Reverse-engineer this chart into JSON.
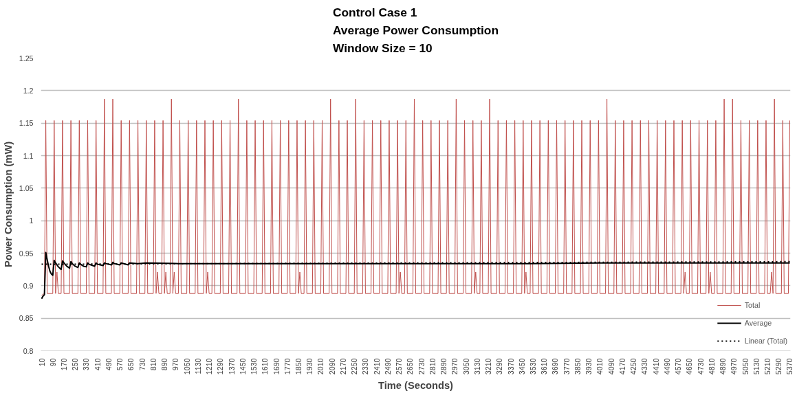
{
  "chart_data": {
    "type": "line",
    "title": "Control Case 1\nAverage Power Consumption\nWindow Size = 10",
    "xlabel": "Time (Seconds)",
    "ylabel": "Power Consumption (mW)",
    "xlim": [
      5,
      5375
    ],
    "xticks": [
      10,
      90,
      170,
      250,
      330,
      410,
      490,
      570,
      650,
      730,
      810,
      890,
      970,
      1050,
      1130,
      1210,
      1290,
      1370,
      1450,
      1530,
      1610,
      1690,
      1770,
      1850,
      1930,
      2010,
      2090,
      2170,
      2250,
      2330,
      2410,
      2490,
      2570,
      2650,
      2730,
      2810,
      2890,
      2970,
      3050,
      3130,
      3210,
      3290,
      3370,
      3450,
      3530,
      3610,
      3690,
      3770,
      3850,
      3930,
      4010,
      4090,
      4170,
      4250,
      4330,
      4410,
      4490,
      4570,
      4650,
      4730,
      4810,
      4890,
      4970,
      5050,
      5130,
      5210,
      5290,
      5370
    ],
    "ylim": [
      0.8,
      1.25
    ],
    "yticks": [
      0.8,
      0.85,
      0.9,
      0.95,
      1,
      1.05,
      1.1,
      1.15,
      1.2,
      1.25
    ],
    "grid": "y",
    "legend": "bottom right",
    "marker": "none",
    "series": [
      {
        "name": "Total",
        "color": "#c0504d",
        "line_style": "solid",
        "x": [
          10,
          20,
          30,
          40,
          50,
          90,
          100,
          110,
          120,
          130,
          150,
          160,
          170,
          210,
          220,
          230,
          270,
          280,
          290,
          330,
          340,
          350,
          390,
          400,
          410,
          450,
          460,
          470,
          510,
          520,
          530,
          570,
          580,
          590,
          630,
          640,
          650,
          690,
          700,
          710,
          750,
          760,
          770,
          810,
          820,
          830,
          840,
          850,
          870,
          880,
          890,
          900,
          910,
          930,
          940,
          950,
          960,
          970,
          990,
          1000,
          1010,
          1050,
          1060,
          1070,
          1110,
          1120,
          1130,
          1170,
          1180,
          1190,
          1200,
          1210,
          1230,
          1240,
          1250,
          1290,
          1300,
          1310,
          1350,
          1360,
          1370,
          1410,
          1420,
          1430,
          1470,
          1480,
          1490,
          1530,
          1540,
          1550,
          1590,
          1600,
          1610,
          1650,
          1660,
          1670,
          1710,
          1720,
          1730,
          1770,
          1780,
          1790,
          1830,
          1840,
          1850,
          1860,
          1870,
          1890,
          1900,
          1910,
          1950,
          1960,
          1970,
          2010,
          2020,
          2030,
          2070,
          2080,
          2090,
          2130,
          2140,
          2150,
          2190,
          2200,
          2210,
          2250,
          2260,
          2270,
          2310,
          2320,
          2330,
          2370,
          2380,
          2390,
          2430,
          2440,
          2450,
          2490,
          2500,
          2510,
          2550,
          2560,
          2570,
          2580,
          2590,
          2610,
          2620,
          2630,
          2670,
          2680,
          2690,
          2730,
          2740,
          2750,
          2790,
          2800,
          2810,
          2850,
          2860,
          2870,
          2910,
          2920,
          2930,
          2970,
          2980,
          2990,
          3030,
          3040,
          3050,
          3090,
          3100,
          3110,
          3120,
          3130,
          3150,
          3160,
          3170,
          3210,
          3220,
          3230,
          3270,
          3280,
          3290,
          3330,
          3340,
          3350,
          3390,
          3400,
          3410,
          3450,
          3460,
          3470,
          3480,
          3490,
          3510,
          3520,
          3530,
          3570,
          3580,
          3590,
          3630,
          3640,
          3650,
          3690,
          3700,
          3710,
          3750,
          3760,
          3770,
          3810,
          3820,
          3830,
          3870,
          3880,
          3890,
          3930,
          3940,
          3950,
          3990,
          4000,
          4010,
          4050,
          4060,
          4070,
          4110,
          4120,
          4130,
          4170,
          4180,
          4190,
          4230,
          4240,
          4250,
          4290,
          4300,
          4310,
          4350,
          4360,
          4370,
          4410,
          4420,
          4430,
          4470,
          4480,
          4490,
          4530,
          4540,
          4550,
          4590,
          4600,
          4610,
          4620,
          4630,
          4650,
          4660,
          4670,
          4710,
          4720,
          4730,
          4770,
          4780,
          4790,
          4800,
          4810,
          4830,
          4840,
          4850,
          4890,
          4900,
          4910,
          4950,
          4960,
          4970,
          5010,
          5020,
          5030,
          5070,
          5080,
          5090,
          5130,
          5140,
          5150,
          5190,
          5200,
          5210,
          5230,
          5240,
          5250,
          5260,
          5270,
          5310,
          5320,
          5330,
          5360,
          5370
        ],
        "values": [
          0.885,
          0.887,
          0.887,
          1.154,
          0.888,
          0.888,
          1.154,
          0.888,
          0.921,
          0.888,
          0.888,
          1.154,
          0.888,
          0.888,
          1.154,
          0.888,
          0.888,
          1.154,
          0.888,
          0.888,
          1.154,
          0.888,
          0.888,
          1.154,
          0.888,
          0.888,
          1.187,
          0.888,
          0.888,
          1.187,
          0.888,
          0.888,
          1.154,
          0.888,
          0.888,
          1.154,
          0.888,
          0.888,
          1.154,
          0.888,
          0.888,
          1.154,
          0.888,
          0.888,
          1.154,
          0.888,
          0.921,
          0.888,
          0.888,
          1.154,
          0.888,
          0.921,
          0.888,
          0.888,
          1.187,
          0.888,
          0.921,
          0.888,
          0.888,
          1.154,
          0.888,
          0.888,
          1.154,
          0.888,
          0.888,
          1.154,
          0.888,
          0.888,
          1.154,
          0.888,
          0.921,
          0.888,
          0.888,
          1.154,
          0.888,
          0.888,
          1.154,
          0.888,
          0.888,
          1.154,
          0.888,
          0.888,
          1.187,
          0.888,
          0.888,
          1.154,
          0.888,
          0.888,
          1.154,
          0.888,
          0.888,
          1.154,
          0.888,
          0.888,
          1.154,
          0.888,
          0.888,
          1.154,
          0.888,
          0.888,
          1.154,
          0.888,
          0.888,
          1.154,
          0.888,
          0.921,
          0.888,
          0.888,
          1.154,
          0.888,
          0.888,
          1.154,
          0.888,
          0.888,
          1.154,
          0.888,
          0.888,
          1.187,
          0.888,
          0.888,
          1.154,
          0.888,
          0.888,
          1.154,
          0.888,
          0.888,
          1.187,
          0.888,
          0.888,
          1.154,
          0.888,
          0.888,
          1.154,
          0.888,
          0.888,
          1.154,
          0.888,
          0.888,
          1.154,
          0.888,
          0.888,
          1.154,
          0.888,
          0.921,
          0.888,
          0.888,
          1.154,
          0.888,
          0.888,
          1.187,
          0.888,
          0.888,
          1.154,
          0.888,
          0.888,
          1.154,
          0.888,
          0.888,
          1.154,
          0.888,
          0.888,
          1.154,
          0.888,
          0.888,
          1.187,
          0.888,
          0.888,
          1.154,
          0.888,
          0.888,
          1.154,
          0.888,
          0.921,
          0.888,
          0.888,
          1.154,
          0.888,
          0.888,
          1.187,
          0.888,
          0.888,
          1.154,
          0.888,
          0.888,
          1.154,
          0.888,
          0.888,
          1.154,
          0.888,
          0.888,
          1.154,
          0.888,
          0.921,
          0.888,
          0.888,
          1.154,
          0.888,
          0.888,
          1.154,
          0.888,
          0.888,
          1.154,
          0.888,
          0.888,
          1.154,
          0.888,
          0.888,
          1.154,
          0.888,
          0.888,
          1.154,
          0.888,
          0.888,
          1.154,
          0.888,
          0.888,
          1.154,
          0.888,
          0.888,
          1.154,
          0.888,
          0.888,
          1.187,
          0.888,
          0.888,
          1.154,
          0.888,
          0.888,
          1.154,
          0.888,
          0.888,
          1.154,
          0.888,
          0.888,
          1.154,
          0.888,
          0.888,
          1.154,
          0.888,
          0.888,
          1.154,
          0.888,
          0.888,
          1.154,
          0.888,
          0.888,
          1.154,
          0.888,
          0.888,
          1.154,
          0.888,
          0.921,
          0.888,
          0.888,
          1.154,
          0.888,
          0.888,
          1.154,
          0.888,
          0.888,
          1.154,
          0.888,
          0.921,
          0.888,
          0.888,
          1.154,
          0.888,
          0.888,
          1.187,
          0.888,
          0.888,
          1.187,
          0.888,
          0.888,
          1.154,
          0.888,
          0.888,
          1.154,
          0.888,
          0.888,
          1.154,
          0.888,
          0.888,
          1.154,
          0.888,
          0.888,
          0.921,
          0.888,
          1.187,
          0.888,
          0.888,
          1.154,
          0.888,
          0.888,
          1.154
        ]
      },
      {
        "name": "Average",
        "color": "#000000",
        "line_style": "solid",
        "x": [
          10,
          20,
          30,
          40,
          50,
          60,
          70,
          80,
          90,
          100,
          110,
          130,
          150,
          160,
          170,
          190,
          210,
          220,
          230,
          250,
          270,
          280,
          290,
          310,
          330,
          340,
          350,
          390,
          400,
          410,
          450,
          460,
          470,
          510,
          520,
          530,
          570,
          580,
          630,
          640,
          700,
          760,
          1000,
          1500,
          2000,
          2500,
          3000,
          3500,
          4000,
          4500,
          5000,
          5370
        ],
        "values": [
          0.88,
          0.884,
          0.886,
          0.951,
          0.94,
          0.93,
          0.922,
          0.918,
          0.916,
          0.939,
          0.935,
          0.929,
          0.925,
          0.938,
          0.935,
          0.93,
          0.927,
          0.937,
          0.934,
          0.93,
          0.928,
          0.935,
          0.933,
          0.93,
          0.929,
          0.935,
          0.933,
          0.93,
          0.935,
          0.933,
          0.931,
          0.935,
          0.934,
          0.932,
          0.936,
          0.934,
          0.932,
          0.935,
          0.932,
          0.935,
          0.934,
          0.935,
          0.934,
          0.934,
          0.934,
          0.934,
          0.934,
          0.934,
          0.935,
          0.935,
          0.935,
          0.935
        ]
      },
      {
        "name": "Linear (Total)",
        "color": "#000000",
        "line_style": "dotted",
        "x": [
          10,
          5370
        ],
        "values": [
          0.933,
          0.937
        ]
      }
    ]
  }
}
